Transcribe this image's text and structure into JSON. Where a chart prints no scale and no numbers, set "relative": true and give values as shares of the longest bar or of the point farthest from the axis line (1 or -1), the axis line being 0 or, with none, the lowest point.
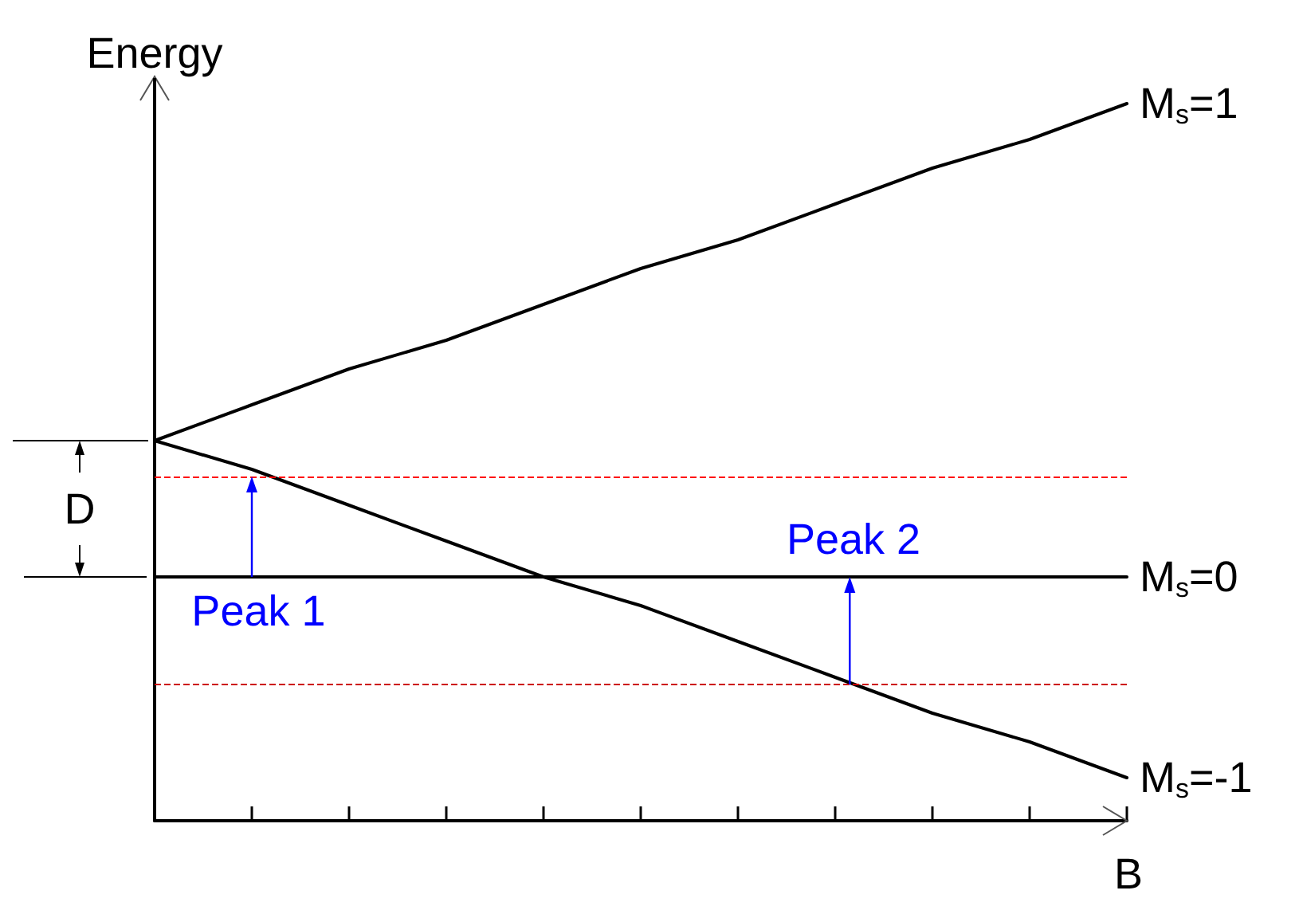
{
  "chart_data": {
    "type": "line",
    "relative": true,
    "xlabel": "B",
    "ylabel": "Energy",
    "categories": [
      null,
      null,
      null,
      null,
      null,
      null,
      null,
      null,
      null,
      null,
      null
    ],
    "series": [
      {
        "name": "M$_{s}$=1",
        "color": "#000000",
        "values": [
          0.53,
          0.58,
          0.63,
          0.67,
          0.72,
          0.77,
          0.81,
          0.86,
          0.91,
          0.95,
          1.0
        ]
      },
      {
        "name": "M$_{s}$=0",
        "color": "#000000",
        "values": [
          0.34,
          0.34,
          0.34,
          0.34,
          0.34,
          0.34,
          0.34,
          0.34,
          0.34,
          0.34,
          0.34
        ]
      },
      {
        "name": "M$_{s}$=-1",
        "color": "#000000",
        "values": [
          0.53,
          0.49,
          0.44,
          0.39,
          0.34,
          0.3,
          0.25,
          0.2,
          0.15,
          0.11,
          0.06
        ]
      }
    ],
    "ref_lines": [
      {
        "axis": "y",
        "value": 0.48,
        "color": "#ff0000",
        "line_style": "dashed"
      },
      {
        "axis": "y",
        "value": 0.19,
        "color": "#cc0000",
        "line_style": "dashed"
      }
    ],
    "annotations": [
      "Peak 1",
      "Peak 2",
      "D"
    ],
    "marker": "none",
    "line_style": "solid",
    "grid": false,
    "legend": false
  }
}
